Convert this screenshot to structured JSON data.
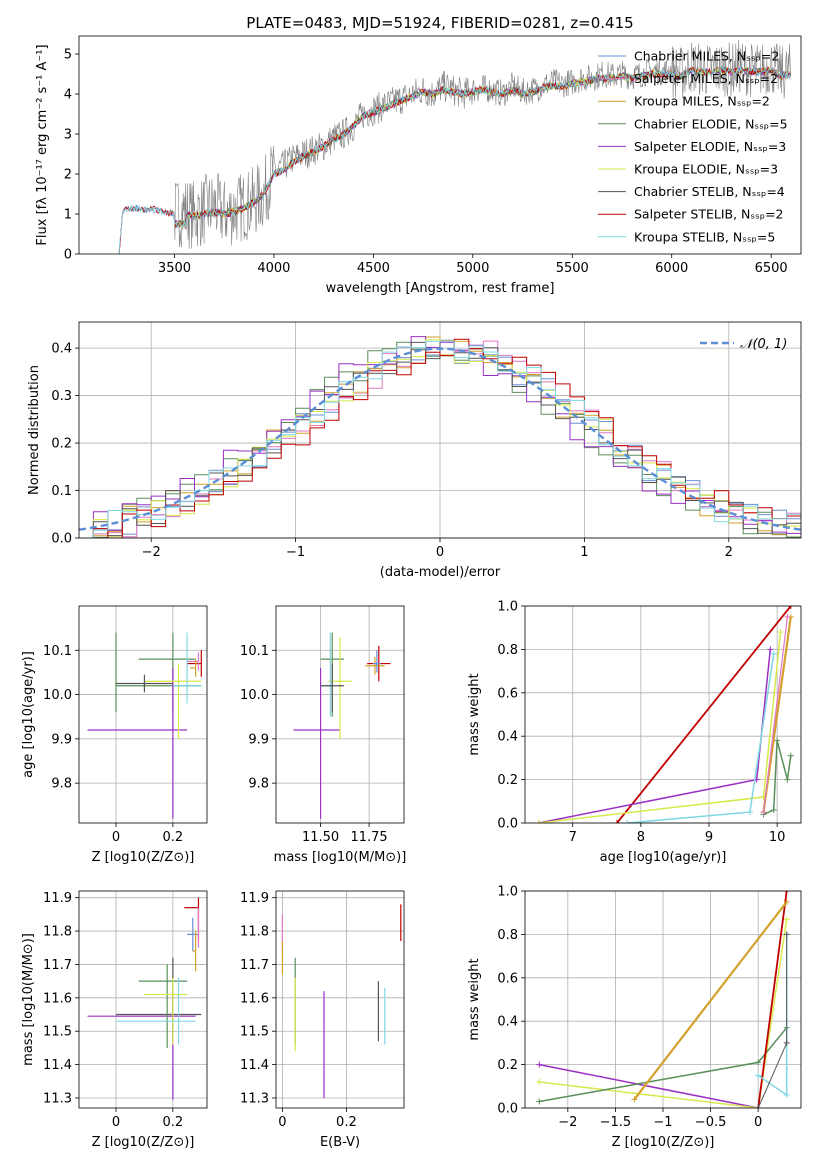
{
  "figure": {
    "title": "PLATE=0483, MJD=51924, FIBERID=0281, z=0.415"
  },
  "chart_data": [
    {
      "id": "spectrum",
      "type": "line",
      "xlabel": "wavelength [Angstrom, rest frame]",
      "ylabel": "Flux [fλ 10⁻¹⁷ erg cm⁻² s⁻¹ A⁻¹]",
      "xlim": [
        3020,
        6650
      ],
      "ylim": [
        0,
        5.45
      ],
      "xticks": [
        3500,
        4000,
        4500,
        5000,
        5500,
        6000,
        6500
      ],
      "yticks": [
        0,
        1,
        2,
        3,
        4,
        5
      ],
      "grid": false,
      "legend_position": "right",
      "data_series": {
        "name": "",
        "color": "#808080",
        "x": [
          3220,
          3240,
          3260,
          3300,
          3350,
          3400,
          3450,
          3500,
          3550,
          3600,
          3650,
          3700,
          3750,
          3800,
          3850,
          3900,
          3950,
          4000,
          4050,
          4100,
          4150,
          4200,
          4250,
          4300,
          4350,
          4400,
          4450,
          4500,
          4550,
          4600,
          4650,
          4700,
          4750,
          4800,
          4850,
          4900,
          4950,
          5000,
          5050,
          5100,
          5150,
          5200,
          5250,
          5300,
          5350,
          5400,
          5450,
          5500,
          5550,
          5600,
          5650,
          5700,
          5750,
          5800,
          5850,
          5900,
          5950,
          6000,
          6050,
          6100,
          6150,
          6200,
          6250,
          6300,
          6350,
          6400,
          6450,
          6500,
          6550,
          6600
        ],
        "y": [
          0.0,
          1.05,
          1.1,
          1.15,
          1.1,
          1.15,
          1.05,
          1.0,
          1.1,
          0.95,
          1.1,
          1.2,
          1.0,
          1.1,
          1.2,
          1.3,
          1.5,
          2.1,
          2.2,
          2.4,
          2.5,
          2.6,
          2.7,
          2.9,
          3.0,
          3.2,
          3.5,
          3.6,
          3.7,
          3.8,
          3.9,
          4.0,
          4.1,
          4.0,
          4.2,
          4.1,
          4.0,
          4.1,
          4.15,
          4.1,
          4.0,
          4.2,
          4.05,
          4.1,
          4.2,
          4.3,
          4.25,
          4.3,
          4.4,
          4.4,
          4.5,
          4.45,
          4.5,
          4.45,
          4.5,
          4.6,
          4.55,
          4.6,
          4.5,
          4.7,
          4.6,
          4.6,
          4.65,
          4.6,
          4.7,
          4.6,
          4.6,
          4.7,
          4.5,
          4.6
        ]
      },
      "series": [
        {
          "name": "Chabrier MILES, N$_{SSP}$=2",
          "color": "#6a8fd8"
        },
        {
          "name": "Salpeter MILES, N$_{SSP}$=2",
          "color": "#e377c2"
        },
        {
          "name": "Kroupa MILES, N$_{SSP}$=2",
          "color": "#d4a02c"
        },
        {
          "name": "Chabrier ELODIE, N$_{SSP}$=5",
          "color": "#5a8f5a"
        },
        {
          "name": "Salpeter ELODIE, N$_{SSP}$=3",
          "color": "#9b30c4"
        },
        {
          "name": "Kroupa ELODIE, N$_{SSP}$=3",
          "color": "#d8e84a"
        },
        {
          "name": "Chabrier STELIB, N$_{SSP}$=4",
          "color": "#555555"
        },
        {
          "name": "Salpeter STELIB, N$_{SSP}$=2",
          "color": "#c00000"
        },
        {
          "name": "Kroupa STELIB, N$_{SSP}$=5",
          "color": "#7fd7e0"
        }
      ],
      "model_curve": {
        "x": [
          3220,
          3240,
          3260,
          3300,
          3350,
          3400,
          3450,
          3500,
          3550,
          3600,
          3650,
          3700,
          3750,
          3800,
          3850,
          3900,
          3950,
          4000,
          4050,
          4100,
          4150,
          4200,
          4250,
          4300,
          4350,
          4400,
          4450,
          4500,
          4550,
          4600,
          4650,
          4700,
          4750,
          4800,
          4850,
          4900,
          4950,
          5000,
          5050,
          5100,
          5150,
          5200,
          5250,
          5300,
          5350,
          5400,
          5450,
          5500,
          5550,
          5600,
          5650,
          5700,
          5750,
          5800,
          5850,
          5900,
          5950,
          6000,
          6050,
          6100,
          6150,
          6200,
          6250,
          6300,
          6350,
          6400,
          6450,
          6500,
          6550,
          6600
        ],
        "y": [
          0.0,
          1.05,
          1.1,
          1.15,
          1.1,
          1.12,
          1.05,
          1.0,
          1.0,
          0.95,
          1.0,
          1.05,
          1.0,
          1.05,
          1.15,
          1.3,
          1.5,
          2.0,
          2.1,
          2.3,
          2.45,
          2.55,
          2.7,
          2.85,
          3.0,
          3.2,
          3.45,
          3.55,
          3.65,
          3.75,
          3.85,
          3.95,
          4.05,
          4.0,
          4.1,
          4.05,
          4.0,
          4.05,
          4.1,
          4.05,
          4.0,
          4.1,
          4.0,
          4.05,
          4.15,
          4.2,
          4.2,
          4.25,
          4.3,
          4.35,
          4.4,
          4.4,
          4.45,
          4.4,
          4.45,
          4.5,
          4.5,
          4.5,
          4.45,
          4.6,
          4.55,
          4.55,
          4.6,
          4.55,
          4.6,
          4.55,
          4.55,
          4.6,
          4.45,
          4.5
        ]
      }
    },
    {
      "id": "residual-histogram",
      "type": "histogram",
      "xlabel": "(data-model)/error",
      "ylabel": "Normed distribution",
      "xlim": [
        -2.5,
        2.5
      ],
      "ylim": [
        0,
        0.455
      ],
      "xticks": [
        -2,
        -1,
        0,
        1,
        2
      ],
      "yticks": [
        0.0,
        0.1,
        0.2,
        0.3,
        0.4
      ],
      "grid": true,
      "legend": [
        {
          "label": "$\\mathcal{N}(0,1)$",
          "style": "dashed",
          "color": "#5b8fd6"
        }
      ],
      "legend_position": "upper right",
      "bin_width": 0.1,
      "bin_start": -2.5,
      "note_values": "normal density N(0,1) with bin-to-bin scatter for each of 9 model fits",
      "peak_values": [
        0.41,
        0.42,
        0.43,
        0.42,
        0.41,
        0.4,
        0.43,
        0.4,
        0.42
      ]
    },
    {
      "id": "z-vs-age",
      "type": "errorbar",
      "xlabel": "Z [log10(Z/Z⊙)]",
      "ylabel": "age [log10(age/yr)]",
      "xlim": [
        -0.13,
        0.32
      ],
      "ylim": [
        9.71,
        10.2
      ],
      "xticks": [
        0.0,
        0.2
      ],
      "yticks": [
        9.8,
        9.9,
        10.0,
        10.1
      ],
      "grid": true
    },
    {
      "id": "mass-vs-age",
      "type": "errorbar",
      "xlabel": "mass [log10(M/M⊙)]",
      "ylabel": "",
      "xlim": [
        11.27,
        11.93
      ],
      "ylim": [
        9.71,
        10.2
      ],
      "xticks": [
        11.5,
        11.75
      ],
      "yticks": [
        9.8,
        9.9,
        10.0,
        10.1
      ],
      "grid": true
    },
    {
      "id": "age-vs-massweight",
      "type": "line",
      "xlabel": "age [log10(age/yr)]",
      "ylabel": "mass weight",
      "xlim": [
        6.3,
        10.35
      ],
      "ylim": [
        0,
        1.0
      ],
      "xticks": [
        7,
        8,
        9,
        10
      ],
      "yticks": [
        0.0,
        0.2,
        0.4,
        0.6,
        0.8,
        1.0
      ],
      "grid": true
    },
    {
      "id": "z-vs-mass",
      "type": "errorbar",
      "xlabel": "Z [log10(Z/Z⊙)]",
      "ylabel": "mass [log10(M/M⊙)]",
      "xlim": [
        -0.13,
        0.32
      ],
      "ylim": [
        11.27,
        11.92
      ],
      "xticks": [
        0.0,
        0.2
      ],
      "yticks": [
        11.3,
        11.4,
        11.5,
        11.6,
        11.7,
        11.8,
        11.9
      ],
      "grid": true
    },
    {
      "id": "ebv-vs-mass",
      "type": "errorbar",
      "xlabel": "E(B-V)",
      "ylabel": "",
      "xlim": [
        -0.02,
        0.38
      ],
      "ylim": [
        11.27,
        11.92
      ],
      "xticks": [
        0.0,
        0.2
      ],
      "yticks": [
        11.3,
        11.4,
        11.5,
        11.6,
        11.7,
        11.8,
        11.9
      ],
      "grid": true
    },
    {
      "id": "z-vs-massweight",
      "type": "line",
      "xlabel": "Z [log10(Z/Z⊙)]",
      "ylabel": "mass weight",
      "xlim": [
        -2.45,
        0.45
      ],
      "ylim": [
        0,
        1.0
      ],
      "xticks": [
        -2.0,
        -1.5,
        -1.0,
        -0.5,
        0.0
      ],
      "yticks": [
        0.0,
        0.2,
        0.4,
        0.6,
        0.8,
        1.0
      ],
      "grid": true
    }
  ]
}
